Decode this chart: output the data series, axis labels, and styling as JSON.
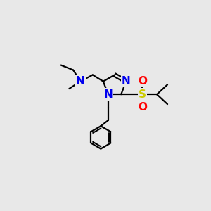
{
  "background_color": "#e8e8e8",
  "atom_colors": {
    "N": "#0000ee",
    "S": "#cccc00",
    "O": "#ff0000",
    "C": "#000000"
  },
  "bond_color": "#000000",
  "bond_width": 1.6,
  "font_size_atoms": 11
}
